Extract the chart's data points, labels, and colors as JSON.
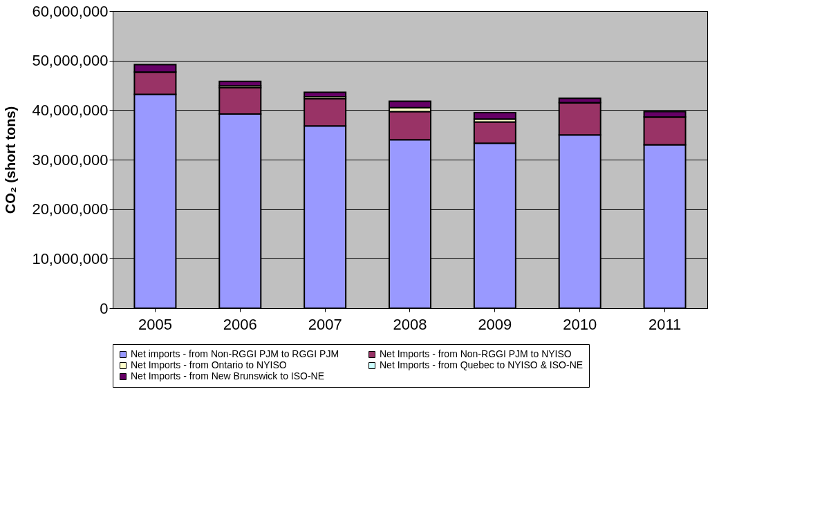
{
  "chart_data": {
    "type": "bar",
    "stacked": true,
    "ylabel": "CO₂ (short tons)",
    "categories": [
      "2005",
      "2006",
      "2007",
      "2008",
      "2009",
      "2010",
      "2011"
    ],
    "series": [
      {
        "name": "Net imports - from Non-RGGI PJM to RGGI PJM",
        "color": "#9999ff",
        "values": [
          43200000,
          39200000,
          36800000,
          34000000,
          33300000,
          35000000,
          33000000
        ]
      },
      {
        "name": "Net Imports - from Non-RGGI PJM to NYISO",
        "color": "#993366",
        "values": [
          4500000,
          5300000,
          5500000,
          5700000,
          4300000,
          6500000,
          5600000
        ]
      },
      {
        "name": "Net Imports - from Ontario to NYISO",
        "color": "#ffffcc",
        "values": [
          0,
          400000,
          400000,
          800000,
          600000,
          0,
          0
        ]
      },
      {
        "name": "Net Imports - from Quebec to NYISO & ISO-NE",
        "color": "#ccffff",
        "values": [
          0,
          0,
          0,
          0,
          0,
          0,
          0
        ]
      },
      {
        "name": "Net Imports - from New Brunswick to ISO-NE",
        "color": "#660066",
        "values": [
          1500000,
          900000,
          900000,
          1300000,
          1300000,
          900000,
          1100000
        ]
      }
    ],
    "ylim": [
      0,
      60000000
    ],
    "yticks": [
      0,
      {
        "value": 10000000,
        "label": "10,000,000"
      },
      {
        "value": 20000000,
        "label": "20,000,000"
      },
      {
        "value": 30000000,
        "label": "30,000,000"
      },
      {
        "value": 40000000,
        "label": "40,000,000"
      },
      {
        "value": 50000000,
        "label": "50,000,000"
      },
      {
        "value": 60000000,
        "label": "60,000,000"
      }
    ],
    "grid": "y",
    "legend": "bottom"
  }
}
